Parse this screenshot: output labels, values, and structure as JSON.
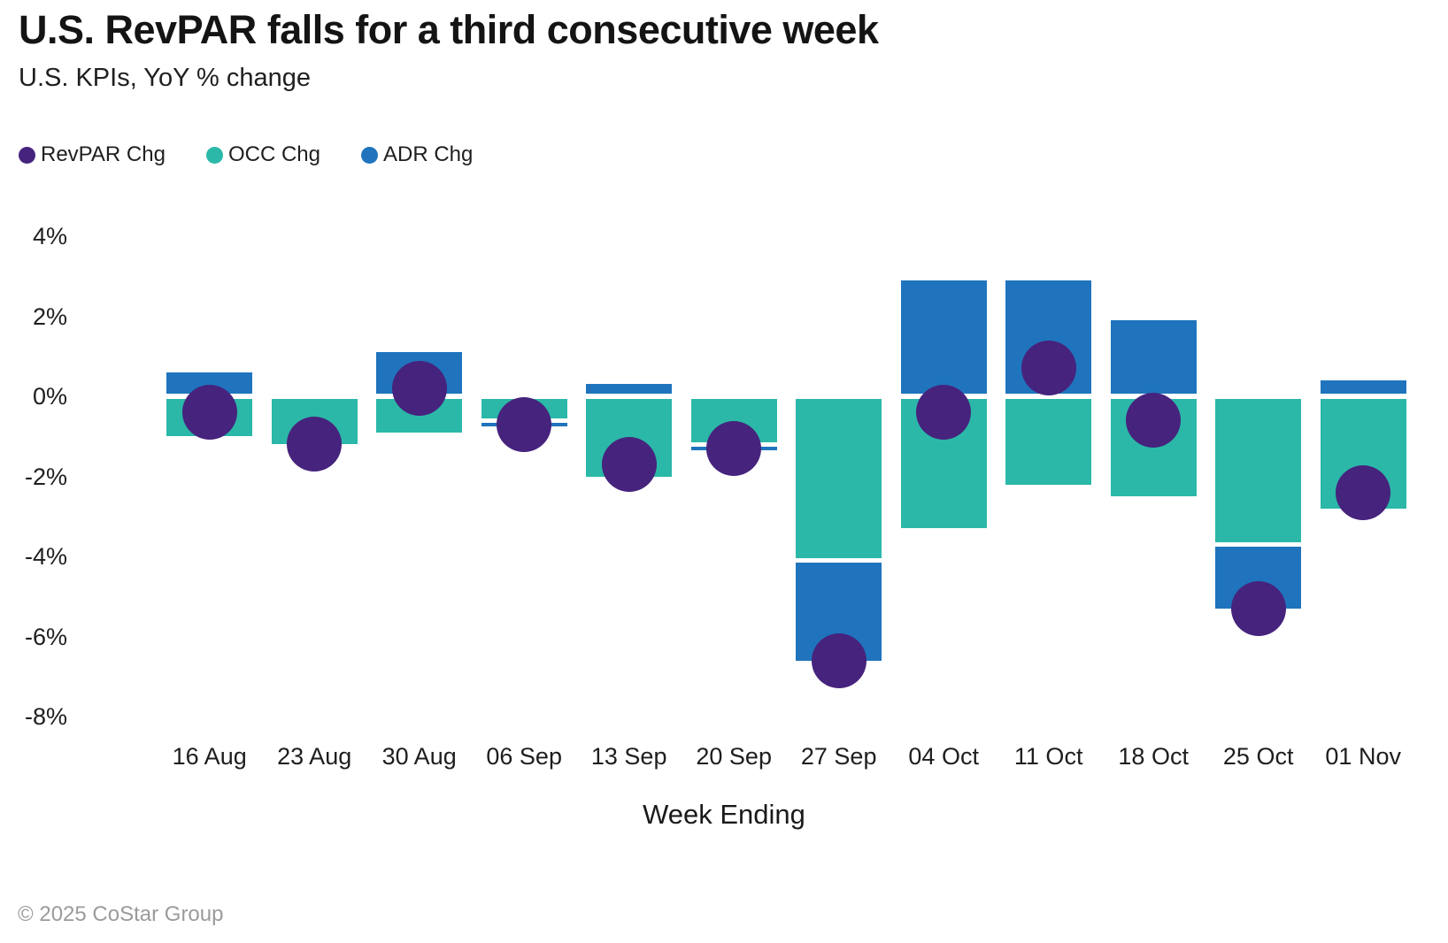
{
  "title": "U.S. RevPAR falls for a third consecutive week",
  "subtitle": "U.S. KPIs, YoY % change",
  "footer": "© 2025 CoStar Group",
  "colors": {
    "revpar_purple": "#46237D",
    "occ_teal": "#2BB8A8",
    "adr_blue": "#1F74BD",
    "text_dark": "#141414",
    "footer_grey": "#9b9b9b",
    "background": "#ffffff"
  },
  "chart_data": {
    "type": "bar",
    "subtype": "stacked-bar-with-dot-overlay",
    "title": "U.S. RevPAR falls for a third consecutive week",
    "subtitle": "U.S. KPIs, YoY % change",
    "xlabel": "Week Ending",
    "ylabel": "YoY % change",
    "grid": false,
    "legend_position": "top-left",
    "ylim": [
      -8.6,
      4.6
    ],
    "y_ticks": [
      "4%",
      "2%",
      "0%",
      "-2%",
      "-4%",
      "-6%",
      "-8%"
    ],
    "y_tick_values": [
      4,
      2,
      0,
      -2,
      -4,
      -6,
      -8
    ],
    "categories": [
      "16 Aug",
      "23 Aug",
      "30 Aug",
      "06 Sep",
      "13 Sep",
      "20 Sep",
      "27 Sep",
      "04 Oct",
      "11 Oct",
      "18 Oct",
      "25 Oct",
      "01 Nov"
    ],
    "series": [
      {
        "name": "RevPAR Chg",
        "style": "dot",
        "color": "#46237D",
        "values": [
          -0.4,
          -1.2,
          0.2,
          -0.7,
          -1.7,
          -1.3,
          -6.6,
          -0.4,
          0.7,
          -0.6,
          -5.3,
          -2.4
        ]
      },
      {
        "name": "OCC Chg",
        "style": "stacked-bar",
        "color": "#2BB8A8",
        "values": [
          -1.0,
          -1.2,
          -0.9,
          -0.6,
          -2.0,
          -1.2,
          -4.1,
          -3.3,
          -2.2,
          -2.5,
          -3.7,
          -2.8
        ]
      },
      {
        "name": "ADR Chg",
        "style": "stacked-bar",
        "color": "#1F74BD",
        "values": [
          0.6,
          0.0,
          1.1,
          -0.1,
          0.3,
          -0.1,
          -2.5,
          2.9,
          2.9,
          1.9,
          -1.6,
          0.4
        ]
      }
    ]
  }
}
